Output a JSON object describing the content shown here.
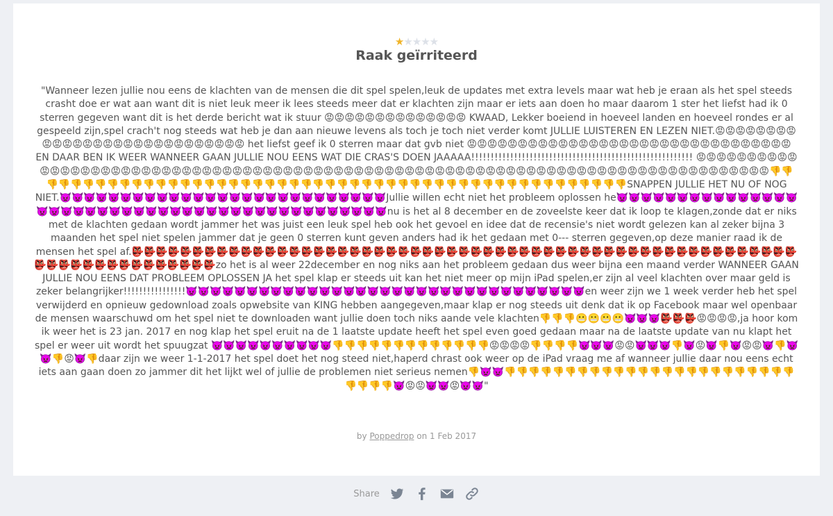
{
  "review": {
    "rating": 1,
    "max_rating": 5,
    "title": "Raak geïrriteerd",
    "body": "\"Wanneer lezen jullie nou eens de klachten van de mensen die dit spel spelen,leuk de updates met extra levels maar wat heb je eraan als het spel steeds crasht doe er wat aan want dit is niet leuk meer ik lees steeds meer dat er klachten zijn maar er iets aan doen ho maar daarom 1 ster het liefst had ik 0 sterren gegeven want dit is het derde bericht wat ik stuur 😡😡😡😡😡😡😡😡😡😡😡😡😡😡 KWAAD, Lekker boeiend in hoeveel landen en hoeveel rondes er al gespeeld zijn,spel crach't nog steeds wat heb je dan aan nieuwe levens als toch je toch niet verder komt JULLIE LUISTEREN EN LEZEN NIET.😡😡😡😡😡😡😡😡😡😡😡😡😡😡😡😡😡😡😡😡😡😡😡😡😡😡😡😡 het liefst geef ik 0 sterren maar dat gvb niet 😡😡😡😡😡😡😡😡😡😡😡😡😡😡😡😡😡😡😡😡😡😡😡😡😡😡😡😡😡😡😡😡 EN DAAR BEN IK WEER WANNEER GAAN JULLIE NOU EENS WAT DIE CRAS'S DOEN JAAAAA!!!!!!!!!!!!!!!!!!!!!!!!!!!!!!!!!!!!!!!!!!!!!!!!!!!!!!!!! 😡😡😡😡😡😡😡😡😡😡😡😡😡😡😡😡😡😡😡😡😡😡😡😡😡😡😡😡😡😡😡😡😡😡😡😡😡😡😡😡😡😡😡😡😡😡😡😡😡😡😡😡😡😡😡😡😡😡😡😡😡😡😡😡😡😡😡😡😡😡😡😡😡😡😡😡😡😡😡😡😡😡👎👎👎👎👎👎👎👎👎👎👎👎👎👎👎👎👎👎👎👎👎👎👎👎👎👎👎👎👎👎👎👎👎👎👎👎👎👎👎👎👎👎👎👎👎👎👎👎👎👎SNAPPEN JULLIE HET NU OF NOG NIET.👿👿👿👿👿👿👿👿👿👿👿👿👿👿👿👿👿👿👿👿👿👿👿👿👿👿👿Jullie willen echt niet het probleem oplossen he👿👿👿👿👿👿👿👿👿👿👿👿👿👿👿👿👿👿👿👿👿👿👿👿👿👿👿👿👿👿👿👿👿👿👿👿👿👿👿👿👿👿👿👿nu is het al 8 december en de zoveelste keer dat ik loop te klagen,zonde dat er niks met de klachten gedaan wordt jammer het was juist een leuk spel heb ook het gevoel en idee dat de recensie's niet wordt gelezen kan al zeker bijna 3 maanden het spel niet spelen jammer dat je geen 0 sterren kunt geven anders had ik het gedaan met 0--- sterren gegeven,op deze manier raad ik de mensen het spel af.👺👺👺👺👺👺👺👺👺👺👺👺👺👺👺👺👺👺👺👺👺👺👺👺👺👺👺👺👺👺👺👺👺👺👺👺👺👺👺👺👺👺👺👺👺👺👺👺👺👺👺👺👺👺👺👺👺👺👺👺👺👺👺👺👺👺👺👺👺👺zo het is al weer 22december en nog niks aan het probleem gedaan dus weer bijna een maand verder WANNEER GAAN JULLIE NOU EENS DAT PROBLEEM OPLOSSEN JA het spel klap er steeds uit kan het niet meer op mijn iPad spelen,er zijn al veel klachten over maar geld is zeker belangrijker!!!!!!!!!!!!!!!!👿👿👿👿👿👿👿👿👿👿👿👿👿👿👿👿👿👿👿👿👿👿👿👿👿👿👿👿👿👿👿👿👿en weer zijn we 1 week verder heb het spel verwijderd en opnieuw gedownload zoals opwebsite van KING hebben aangegeven,maar klap er nog steeds uit denk dat ik op Facebook maar wel openbaar de mensen waarschuwd om het spel niet te downloaden want jullie doen toch niks aande vele klachten👎👎👎😬😬😬😬👿👿👿👺👺👺😡😡😡😡,ja hoor kom ik weer het is 23 jan. 2017 en nog klap het spel eruit na de 1 laatste update heeft het spel even goed gedaan maar na de laatste update van nu klapt het spel er weer uit wordt het spuugzat 👿👿👿👿👿👿👿👿👿👿👎👎👎👎👎👎👎👎👎👎👎👎👎😡😡😡😡👎👎👎👎👿👿👿😡😡👿👿👿👎👿😡👿👎👿😡😡👿👎👿👿👎😡👿👎daar zijn we weer 1-1-2017 het spel doet het nog steed niet,haperd chrast ook weer op de iPad vraag me af wanneer jullie daar nou eens echt iets aan gaan doen zo jammer dit het lijkt wel of jullie de problemen niet serieus nemen👎👿👿👎👎👎👎👎👎👎👎👎👎👎👎👎👎👎👎👎👎👎👎👎👎👎👎👎👎👎👎👿😡😡👿👿😡👿👿\"",
    "by": "by",
    "author": "Poppedrop",
    "date": "on 1 Feb 2017"
  },
  "share": {
    "label": "Share"
  }
}
